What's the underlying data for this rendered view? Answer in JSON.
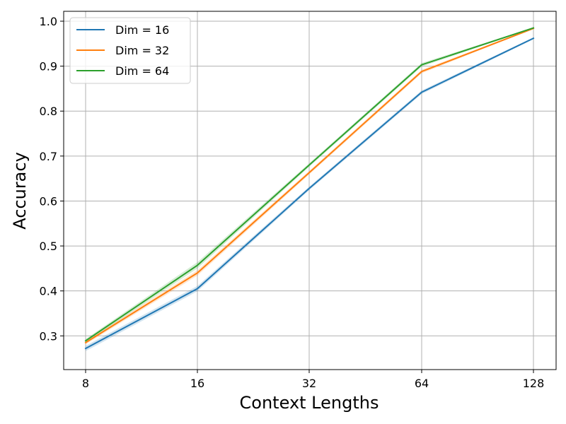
{
  "chart_data": {
    "type": "line",
    "title": "",
    "xlabel": "Context Lengths",
    "ylabel": "Accuracy",
    "x_categories": [
      "8",
      "16",
      "32",
      "64",
      "128"
    ],
    "y_ticks": [
      "0.3",
      "0.4",
      "0.5",
      "0.6",
      "0.7",
      "0.8",
      "0.9",
      "1.0"
    ],
    "ylim": [
      0.225,
      1.022
    ],
    "grid": true,
    "legend_position": "top-left",
    "series": [
      {
        "name": "Dim = 16",
        "color": "#1f77b4",
        "values": [
          0.272,
          0.405,
          0.628,
          0.842,
          0.962
        ],
        "band": [
          0.006,
          0.006,
          0.004,
          0.004,
          0.002
        ]
      },
      {
        "name": "Dim = 32",
        "color": "#ff7f0e",
        "values": [
          0.285,
          0.44,
          0.663,
          0.888,
          0.984
        ],
        "band": [
          0.004,
          0.006,
          0.004,
          0.004,
          0.001
        ]
      },
      {
        "name": "Dim = 64",
        "color": "#2ca02c",
        "values": [
          0.289,
          0.457,
          0.68,
          0.903,
          0.985
        ],
        "band": [
          0.004,
          0.007,
          0.004,
          0.004,
          0.001
        ]
      }
    ]
  }
}
